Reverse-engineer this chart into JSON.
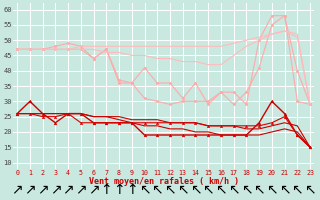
{
  "x": [
    0,
    1,
    2,
    3,
    4,
    5,
    6,
    7,
    8,
    9,
    10,
    11,
    12,
    13,
    14,
    15,
    16,
    17,
    18,
    19,
    20,
    21,
    22,
    23
  ],
  "series": [
    {
      "name": "rafales_max1",
      "color": "#ffaaaa",
      "linewidth": 0.8,
      "marker": "o",
      "markersize": 1.8,
      "y": [
        47,
        47,
        47,
        47,
        47,
        47,
        44,
        47,
        36,
        36,
        41,
        36,
        36,
        31,
        36,
        29,
        33,
        29,
        33,
        41,
        55,
        58,
        40,
        29
      ]
    },
    {
      "name": "rafales_max2",
      "color": "#ffaaaa",
      "linewidth": 0.8,
      "marker": "o",
      "markersize": 1.8,
      "y": [
        47,
        47,
        47,
        48,
        49,
        48,
        44,
        47,
        37,
        36,
        31,
        30,
        29,
        30,
        30,
        30,
        33,
        33,
        29,
        50,
        58,
        58,
        30,
        29
      ]
    },
    {
      "name": "rafales_trend1",
      "color": "#ffbbbb",
      "linewidth": 0.8,
      "marker": null,
      "markersize": 0,
      "y": [
        47,
        47,
        47,
        47,
        47,
        47,
        47,
        46,
        46,
        45,
        45,
        44,
        44,
        43,
        43,
        42,
        42,
        45,
        48,
        50,
        52,
        53,
        51,
        29
      ]
    },
    {
      "name": "rafales_trend2",
      "color": "#ffbbbb",
      "linewidth": 0.8,
      "marker": null,
      "markersize": 0,
      "y": [
        47,
        47,
        47,
        47,
        47,
        48,
        48,
        48,
        48,
        48,
        48,
        48,
        48,
        48,
        48,
        48,
        48,
        49,
        50,
        51,
        52,
        53,
        52,
        29
      ]
    },
    {
      "name": "vent_moyen1",
      "color": "#cc0000",
      "linewidth": 1.0,
      "marker": "^",
      "markersize": 2.0,
      "y": [
        26,
        30,
        26,
        23,
        26,
        26,
        23,
        23,
        23,
        23,
        19,
        19,
        19,
        19,
        19,
        19,
        19,
        19,
        19,
        23,
        30,
        26,
        19,
        15
      ]
    },
    {
      "name": "vent_moyen2",
      "color": "#dd0000",
      "linewidth": 0.8,
      "marker": "^",
      "markersize": 1.8,
      "y": [
        26,
        26,
        25,
        25,
        26,
        23,
        23,
        23,
        23,
        23,
        23,
        23,
        23,
        23,
        23,
        22,
        22,
        22,
        22,
        22,
        23,
        25,
        19,
        15
      ]
    },
    {
      "name": "vent_trend1",
      "color": "#cc0000",
      "linewidth": 0.8,
      "marker": null,
      "markersize": 0,
      "y": [
        26,
        26,
        26,
        26,
        26,
        26,
        25,
        25,
        25,
        24,
        24,
        24,
        23,
        23,
        23,
        22,
        22,
        22,
        21,
        21,
        22,
        23,
        22,
        15
      ]
    },
    {
      "name": "vent_trend2",
      "color": "#cc0000",
      "linewidth": 0.8,
      "marker": null,
      "markersize": 0,
      "y": [
        26,
        26,
        26,
        26,
        26,
        26,
        25,
        25,
        24,
        23,
        22,
        22,
        21,
        21,
        20,
        20,
        19,
        19,
        19,
        19,
        20,
        21,
        20,
        15
      ]
    }
  ],
  "xlim": [
    -0.3,
    23.3
  ],
  "ylim": [
    8,
    62
  ],
  "yticks": [
    10,
    15,
    20,
    25,
    30,
    35,
    40,
    45,
    50,
    55,
    60
  ],
  "xticks": [
    0,
    1,
    2,
    3,
    4,
    5,
    6,
    7,
    8,
    9,
    10,
    11,
    12,
    13,
    14,
    15,
    16,
    17,
    18,
    19,
    20,
    21,
    22,
    23
  ],
  "xlabel": "Vent moyen/en rafales ( km/h )",
  "xlabel_color": "#cc0000",
  "bg_color": "#c8e8e0",
  "grid_color": "#ffffff",
  "tick_color": "#cc0000",
  "ytick_color": "#444444"
}
